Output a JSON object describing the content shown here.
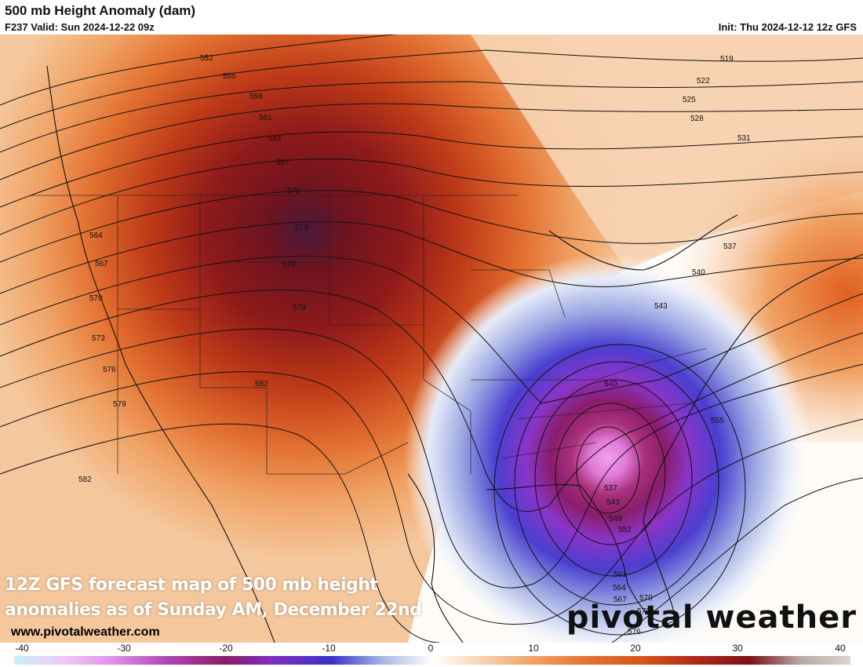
{
  "header": {
    "title": "500 mb Height Anomaly (dam)",
    "valid": "F237 Valid: Sun 2024-12-22 09z",
    "init": "Init: Thu 2024-12-12 12z GFS"
  },
  "caption": {
    "line1": "12Z GFS forecast map of 500 mb height",
    "line2": "anomalies as of Sunday AM, December 22nd"
  },
  "site_url": "www.pivotalweather.com",
  "brand": "pivotal weather",
  "colorbar": {
    "min": -40,
    "max": 40,
    "ticks": [
      "-40",
      "-30",
      "-20",
      "-10",
      "0",
      "10",
      "20",
      "30",
      "40"
    ],
    "colors": {
      "neg40": "#c8f0f8",
      "neg30": "#e08ee8",
      "neg25": "#b048b8",
      "neg20": "#8a1d6a",
      "neg15": "#7d2fbf",
      "neg10": "#3a32c8",
      "neg5": "#a8b4e8",
      "zero": "#ffffff",
      "pos5": "#f7d2b2",
      "pos10": "#f0a264",
      "pos20": "#d8561a",
      "pos25": "#b52a18",
      "pos30": "#7a1218",
      "pos40": "#d8d4d0"
    }
  },
  "contour_labels": [
    "519",
    "522",
    "525",
    "528",
    "531",
    "537",
    "540",
    "543",
    "552",
    "555",
    "558",
    "561",
    "564",
    "567",
    "570",
    "573",
    "576",
    "579",
    "582",
    "564",
    "567",
    "570",
    "573",
    "576",
    "579",
    "582",
    "540",
    "537",
    "543",
    "549",
    "552",
    "555",
    "561",
    "564",
    "567",
    "570",
    "573",
    "576"
  ]
}
